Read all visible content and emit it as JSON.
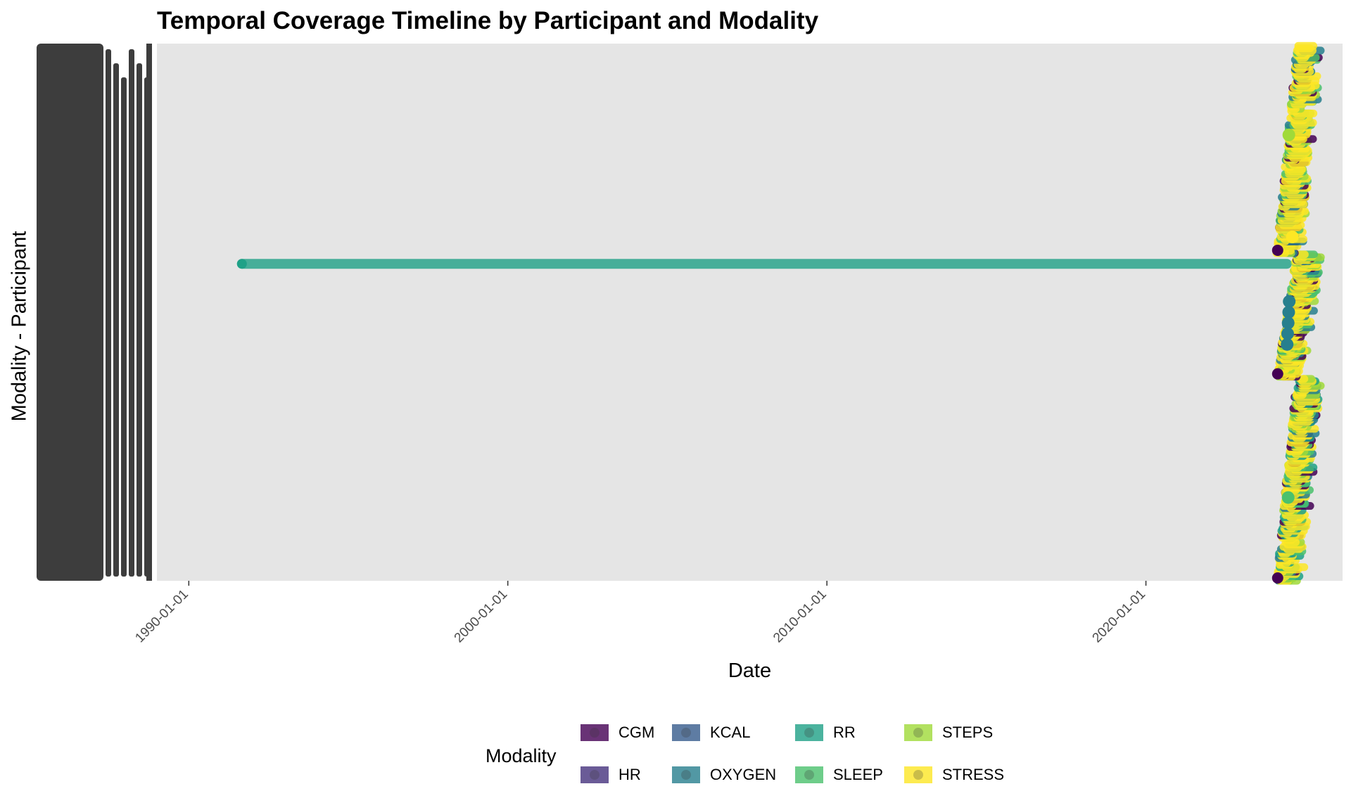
{
  "chart_data": {
    "type": "scatter",
    "title": "Temporal Coverage Timeline by Participant and Modality",
    "xlabel": "Date",
    "ylabel": "Modality - Participant",
    "x_ticks": [
      "1990-01-01",
      "2000-01-01",
      "2010-01-01",
      "2020-01-01"
    ],
    "xlim": [
      "1989-01-01",
      "2026-03-01"
    ],
    "y_tick_labels_legible": false,
    "grid": false,
    "legend": {
      "title": "Modality",
      "position": "bottom",
      "entries": [
        {
          "name": "CGM",
          "color": "#440154"
        },
        {
          "name": "HR",
          "color": "#46337e"
        },
        {
          "name": "KCAL",
          "color": "#365c8d"
        },
        {
          "name": "OXYGEN",
          "color": "#277f8e"
        },
        {
          "name": "RR",
          "color": "#1fa187"
        },
        {
          "name": "SLEEP",
          "color": "#4ac16d"
        },
        {
          "name": "STEPS",
          "color": "#a0da39"
        },
        {
          "name": "STRESS",
          "color": "#fde725"
        }
      ]
    },
    "series": [
      {
        "name": "RR",
        "segment": {
          "start": "1991-09-01",
          "end": "2024-06-01"
        }
      }
    ],
    "clusters": [
      {
        "x_start": "2024-02-01",
        "x_end": "2024-12-01",
        "y_frac_start": 0.0,
        "y_frac_end": 0.38,
        "modalities": [
          "CGM",
          "OXYGEN",
          "RR",
          "SLEEP",
          "STEPS",
          "STRESS"
        ]
      },
      {
        "x_start": "2024-02-01",
        "x_end": "2024-12-01",
        "y_frac_start": 0.38,
        "y_frac_end": 0.61,
        "modalities": [
          "CGM",
          "OXYGEN",
          "SLEEP",
          "STEPS",
          "STRESS"
        ]
      },
      {
        "x_start": "2024-02-01",
        "x_end": "2024-12-01",
        "y_frac_start": 0.61,
        "y_frac_end": 1.0,
        "modalities": [
          "CGM",
          "OXYGEN",
          "SLEEP",
          "STEPS",
          "STRESS"
        ]
      }
    ]
  }
}
